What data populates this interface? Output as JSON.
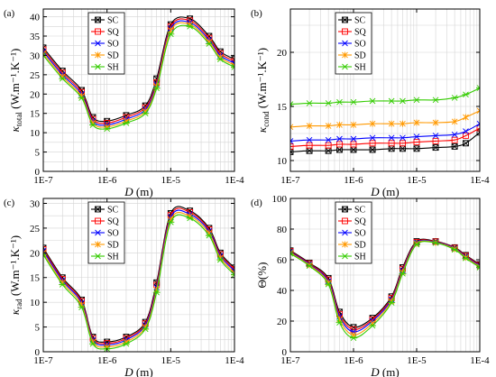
{
  "colors": {
    "SC": "#000000",
    "SQ": "#ff0000",
    "SO": "#0000ff",
    "SD": "#ff9900",
    "SH": "#33cc00"
  },
  "chart_data": [
    {
      "type": "line",
      "panel": "(a)",
      "xscale": "log",
      "xlim": [
        1e-07,
        0.0001
      ],
      "ylim": [
        0,
        42
      ],
      "ylabel": "κ",
      "ylabel_sub": "total",
      "ylabel_unit": " (W.m⁻¹.K⁻¹)",
      "xlabel": "D (m)",
      "xticks": [
        "1E-7",
        "1E-6",
        "1E-5",
        "1E-4"
      ],
      "yticks": [
        0,
        5,
        10,
        15,
        20,
        25,
        30,
        35,
        40
      ],
      "legend": "top-left",
      "x": [
        1e-07,
        2e-07,
        4e-07,
        6e-07,
        1e-06,
        2e-06,
        4e-06,
        6e-06,
        1e-05,
        2e-05,
        4e-05,
        6e-05,
        0.0001
      ],
      "series": [
        {
          "name": "SC",
          "values": [
            32,
            26,
            21,
            14,
            13,
            14.5,
            17,
            24,
            38,
            39.5,
            35,
            31,
            29
          ]
        },
        {
          "name": "SQ",
          "values": [
            31.5,
            25.5,
            20.5,
            13.5,
            12.5,
            14,
            16.5,
            23,
            37.5,
            39,
            34.5,
            30.5,
            28.5
          ]
        },
        {
          "name": "SO",
          "values": [
            31,
            25,
            20,
            13,
            12,
            13.5,
            16,
            22.5,
            37,
            38.5,
            34,
            30,
            28
          ]
        },
        {
          "name": "SD",
          "values": [
            30.5,
            24.5,
            19.5,
            12.5,
            11.5,
            13,
            15.5,
            22,
            36.5,
            38,
            33.5,
            29.5,
            27.5
          ]
        },
        {
          "name": "SH",
          "values": [
            30,
            24,
            19,
            12,
            11,
            12.5,
            15,
            21.5,
            35.5,
            37.5,
            33,
            29,
            27
          ]
        }
      ]
    },
    {
      "type": "line",
      "panel": "(b)",
      "xscale": "log",
      "xlim": [
        1e-07,
        0.0001
      ],
      "ylim": [
        9,
        24
      ],
      "ylabel": "κ",
      "ylabel_sub": "cond",
      "ylabel_unit": " (W.m⁻¹.K⁻¹)",
      "xlabel": "D (m)",
      "xticks": [
        "1E-7",
        "1E-6",
        "1E-5",
        "1E-4"
      ],
      "yticks": [
        10,
        15,
        20
      ],
      "legend": "top-left",
      "x": [
        1e-07,
        2e-07,
        4e-07,
        6e-07,
        1e-06,
        2e-06,
        4e-06,
        6e-06,
        1e-05,
        2e-05,
        4e-05,
        6e-05,
        0.0001
      ],
      "series": [
        {
          "name": "SC",
          "values": [
            10.8,
            10.9,
            10.9,
            11,
            11,
            11,
            11.1,
            11.1,
            11.1,
            11.2,
            11.3,
            11.6,
            12.6
          ]
        },
        {
          "name": "SQ",
          "values": [
            11.3,
            11.4,
            11.4,
            11.5,
            11.5,
            11.6,
            11.6,
            11.6,
            11.7,
            11.8,
            11.9,
            12.3,
            13
          ]
        },
        {
          "name": "SO",
          "values": [
            11.8,
            11.9,
            11.9,
            12,
            12,
            12.1,
            12.1,
            12.1,
            12.2,
            12.3,
            12.4,
            12.7,
            13.4
          ]
        },
        {
          "name": "SD",
          "values": [
            13.1,
            13.2,
            13.2,
            13.3,
            13.3,
            13.4,
            13.4,
            13.4,
            13.5,
            13.5,
            13.6,
            14,
            14.6
          ]
        },
        {
          "name": "SH",
          "values": [
            15.2,
            15.3,
            15.3,
            15.4,
            15.4,
            15.5,
            15.5,
            15.5,
            15.6,
            15.6,
            15.8,
            16.1,
            16.7
          ]
        }
      ]
    },
    {
      "type": "line",
      "panel": "(c)",
      "xscale": "log",
      "xlim": [
        1e-07,
        0.0001
      ],
      "ylim": [
        0,
        31
      ],
      "ylabel": "κ",
      "ylabel_sub": "rad",
      "ylabel_unit": " (W.m⁻¹.K⁻¹)",
      "xlabel": "D (m)",
      "xticks": [
        "1E-7",
        "1E-6",
        "1E-5",
        "1E-4"
      ],
      "yticks": [
        0,
        5,
        10,
        15,
        20,
        25,
        30
      ],
      "legend": "top-left",
      "x": [
        1e-07,
        2e-07,
        4e-07,
        6e-07,
        1e-06,
        2e-06,
        4e-06,
        6e-06,
        1e-05,
        2e-05,
        4e-05,
        6e-05,
        0.0001
      ],
      "series": [
        {
          "name": "SC",
          "values": [
            21,
            15,
            10.5,
            3,
            2,
            3,
            6,
            14,
            28,
            28.5,
            25,
            20,
            17
          ]
        },
        {
          "name": "SQ",
          "values": [
            20.7,
            14.7,
            10.2,
            2.7,
            1.7,
            2.7,
            5.7,
            13.5,
            27.6,
            28.2,
            24.7,
            19.7,
            16.7
          ]
        },
        {
          "name": "SO",
          "values": [
            20.4,
            14.4,
            9.9,
            2.4,
            1.4,
            2.4,
            5.4,
            13,
            27.2,
            27.8,
            24.4,
            19.4,
            16.4
          ]
        },
        {
          "name": "SD",
          "values": [
            20,
            14,
            9.5,
            2,
            1,
            2,
            5,
            12.5,
            26.7,
            27.4,
            24,
            19,
            16
          ]
        },
        {
          "name": "SH",
          "values": [
            19.6,
            13.6,
            9,
            1.6,
            0.6,
            1.6,
            4.6,
            12,
            26.2,
            27,
            23.5,
            18.6,
            15.6
          ]
        }
      ]
    },
    {
      "type": "line",
      "panel": "(d)",
      "xscale": "log",
      "xlim": [
        1e-07,
        0.0001
      ],
      "ylim": [
        0,
        100
      ],
      "ylabel": "Θ(%)",
      "xlabel": "D (m)",
      "xticks": [
        "1E-7",
        "1E-6",
        "1E-5",
        "1E-4"
      ],
      "yticks": [
        0,
        20,
        40,
        60,
        80,
        100
      ],
      "legend": "top-left",
      "x": [
        1e-07,
        2e-07,
        4e-07,
        6e-07,
        1e-06,
        2e-06,
        4e-06,
        6e-06,
        1e-05,
        2e-05,
        4e-05,
        6e-05,
        0.0001
      ],
      "series": [
        {
          "name": "SC",
          "values": [
            66,
            58,
            48,
            26,
            16,
            22,
            36,
            55,
            72,
            72,
            68,
            63,
            57
          ]
        },
        {
          "name": "SQ",
          "values": [
            65.5,
            57.5,
            47,
            24.5,
            14.5,
            21,
            35,
            54,
            71.5,
            71.8,
            67.7,
            62.5,
            56.5
          ]
        },
        {
          "name": "SO",
          "values": [
            65,
            57,
            46,
            23,
            13,
            20,
            34,
            53,
            71,
            71.5,
            67.4,
            62,
            56
          ]
        },
        {
          "name": "SD",
          "values": [
            64.5,
            56.5,
            45,
            21,
            11,
            18.5,
            33,
            52,
            70.5,
            71.2,
            67,
            61.5,
            55.5
          ]
        },
        {
          "name": "SH",
          "values": [
            64,
            56,
            44,
            19,
            9,
            17,
            32,
            51,
            70,
            71,
            66.6,
            61,
            55
          ]
        }
      ]
    }
  ]
}
